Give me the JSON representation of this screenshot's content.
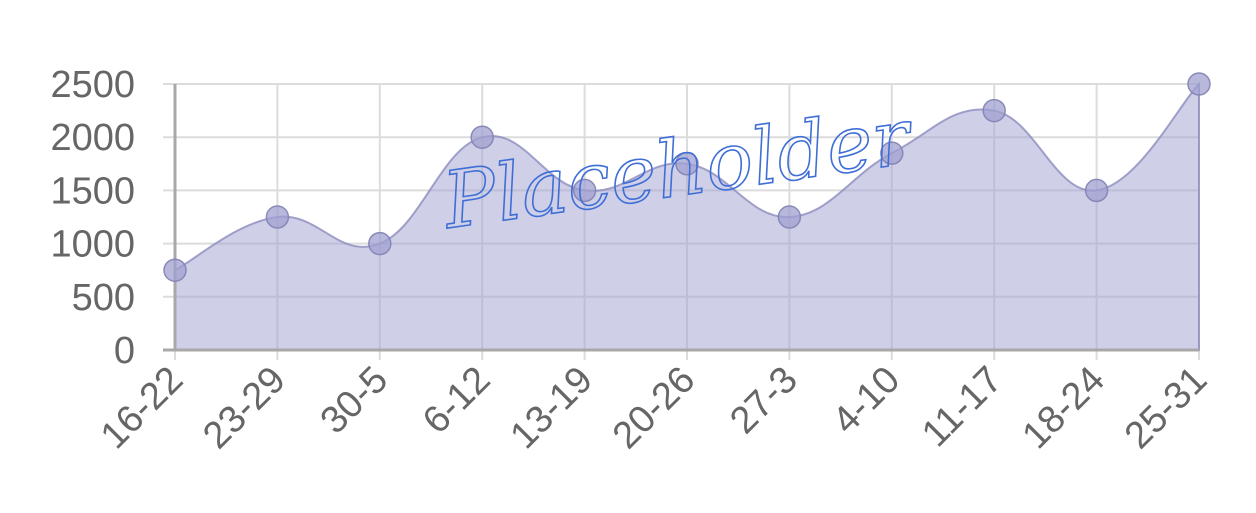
{
  "chart_data": {
    "type": "area",
    "title": "",
    "xlabel": "",
    "ylabel": "",
    "categories": [
      "16-22",
      "23-29",
      "30-5",
      "6-12",
      "13-19",
      "20-26",
      "27-3",
      "4-10",
      "11-17",
      "18-24",
      "25-31"
    ],
    "series": [
      {
        "values": [
          750,
          1250,
          1000,
          2000,
          1500,
          1750,
          1250,
          1850,
          2250,
          1500,
          2500
        ],
        "fill_color": "#a0a0d2",
        "line_color": "#8c8cbe"
      }
    ],
    "ylim": [
      0,
      2500
    ],
    "yticks": [
      "2500",
      "2000",
      "1500",
      "1000",
      "500",
      "0"
    ],
    "grid": true,
    "legend": "none",
    "watermark": "Placeholder"
  }
}
